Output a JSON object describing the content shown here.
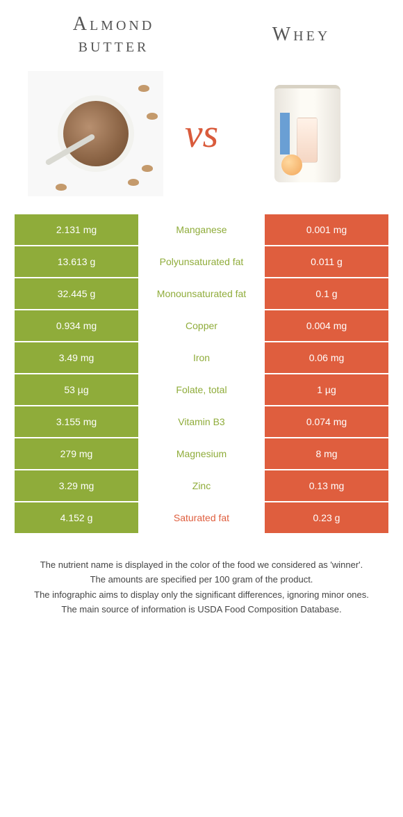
{
  "header": {
    "left_line1": "Almond",
    "left_line2": "butter",
    "right": "Whey",
    "vs": "vs"
  },
  "colors": {
    "green": "#8fac3a",
    "orange": "#df5e3e",
    "mid_bg": "#ffffff",
    "mid_text_green": "#8fac3a",
    "mid_text_orange": "#df5e3e",
    "white": "#ffffff"
  },
  "rows": [
    {
      "left": "2.131 mg",
      "mid": "Manganese",
      "right": "0.001 mg",
      "winner": "left"
    },
    {
      "left": "13.613 g",
      "mid": "Polyunsaturated fat",
      "right": "0.011 g",
      "winner": "left"
    },
    {
      "left": "32.445 g",
      "mid": "Monounsaturated fat",
      "right": "0.1 g",
      "winner": "left"
    },
    {
      "left": "0.934 mg",
      "mid": "Copper",
      "right": "0.004 mg",
      "winner": "left"
    },
    {
      "left": "3.49 mg",
      "mid": "Iron",
      "right": "0.06 mg",
      "winner": "left"
    },
    {
      "left": "53 µg",
      "mid": "Folate, total",
      "right": "1 µg",
      "winner": "left"
    },
    {
      "left": "3.155 mg",
      "mid": "Vitamin B3",
      "right": "0.074 mg",
      "winner": "left"
    },
    {
      "left": "279 mg",
      "mid": "Magnesium",
      "right": "8 mg",
      "winner": "left"
    },
    {
      "left": "3.29 mg",
      "mid": "Zinc",
      "right": "0.13 mg",
      "winner": "left"
    },
    {
      "left": "4.152 g",
      "mid": "Saturated fat",
      "right": "0.23 g",
      "winner": "right"
    }
  ],
  "footnotes": [
    "The nutrient name is displayed in the color of the food we considered as 'winner'.",
    "The amounts are specified per 100 gram of the product.",
    "The infographic aims to display only the significant differences, ignoring minor ones.",
    "The main source of information is USDA Food Composition Database."
  ]
}
